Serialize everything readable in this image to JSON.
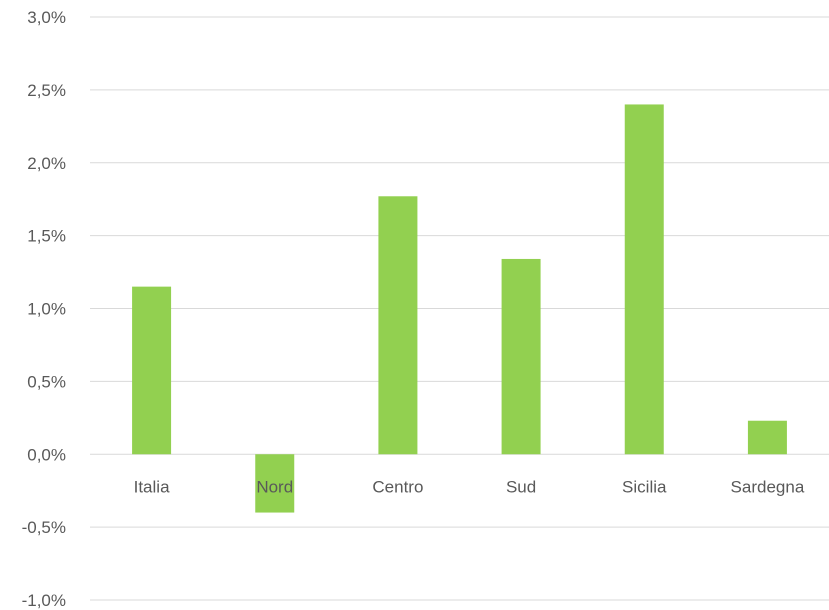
{
  "chart_data": {
    "type": "bar",
    "title": "",
    "xlabel": "",
    "ylabel": "",
    "categories": [
      "Italia",
      "Nord",
      "Centro",
      "Sud",
      "Sicilia",
      "Sardegna"
    ],
    "values": [
      1.15,
      -0.4,
      1.77,
      1.34,
      2.4,
      0.23
    ],
    "ylim": [
      -1.0,
      3.0
    ],
    "yticks": [
      3.0,
      2.5,
      2.0,
      1.5,
      1.0,
      0.5,
      0.0,
      -0.5,
      -1.0
    ],
    "ytick_labels": [
      "3,0%",
      "2,5%",
      "2,0%",
      "1,5%",
      "1,0%",
      "0,5%",
      "0,0%",
      "-0,5%",
      "-1,0%"
    ],
    "grid": true,
    "legend": "none",
    "bar_color": "#92d050",
    "grid_color": "#d9d9d9",
    "label_color": "#595959"
  }
}
